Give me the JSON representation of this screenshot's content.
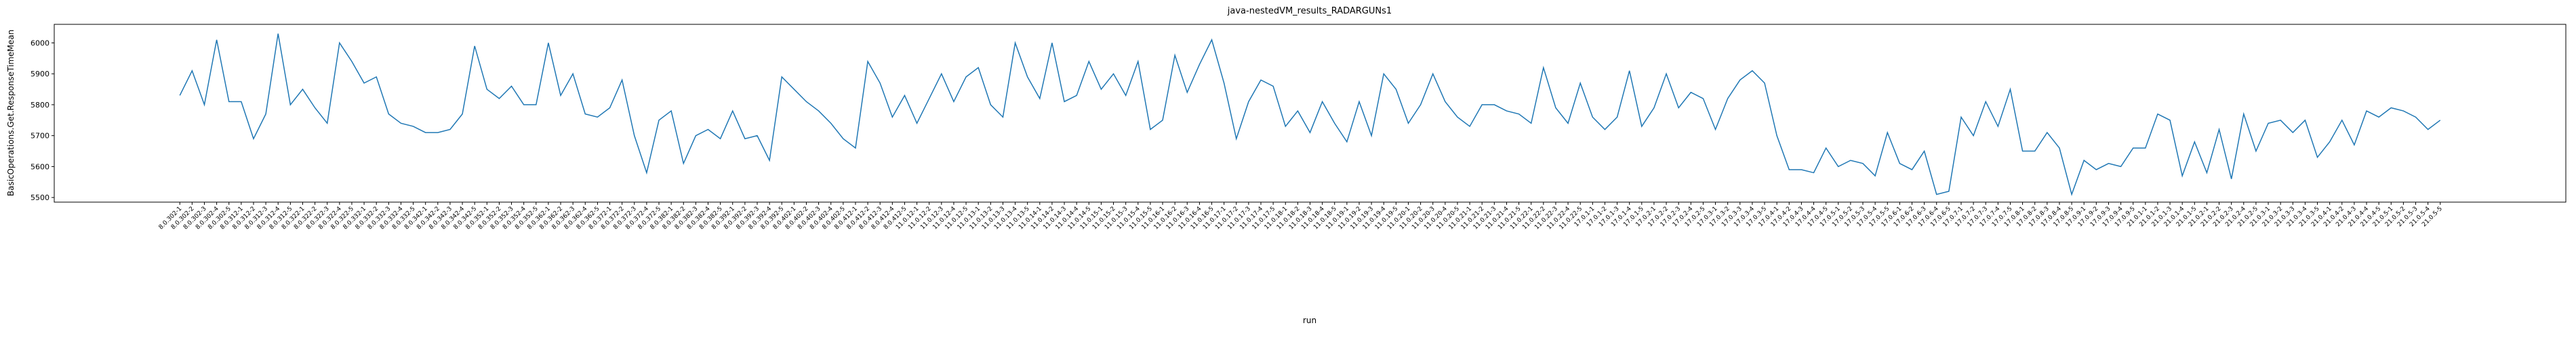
{
  "chart_data": {
    "type": "line",
    "title": "java-nestedVM_results_RADARGUNs1",
    "x_label": "run",
    "y_label": "BasicOperations.Get.ResponseTimeMean",
    "categories": [
      "8.0.302-1",
      "8.0.302-2",
      "8.0.302-3",
      "8.0.302-4",
      "8.0.302-5",
      "8.0.312-1",
      "8.0.312-2",
      "8.0.312-3",
      "8.0.312-4",
      "8.0.312-5",
      "8.0.322-1",
      "8.0.322-2",
      "8.0.322-3",
      "8.0.322-4",
      "8.0.322-5",
      "8.0.332-1",
      "8.0.332-2",
      "8.0.332-3",
      "8.0.332-4",
      "8.0.332-5",
      "8.0.342-1",
      "8.0.342-2",
      "8.0.342-3",
      "8.0.342-4",
      "8.0.342-5",
      "8.0.352-1",
      "8.0.352-2",
      "8.0.352-3",
      "8.0.352-4",
      "8.0.352-5",
      "8.0.362-1",
      "8.0.362-2",
      "8.0.362-3",
      "8.0.362-4",
      "8.0.362-5",
      "8.0.372-1",
      "8.0.372-2",
      "8.0.372-3",
      "8.0.372-4",
      "8.0.372-5",
      "8.0.382-1",
      "8.0.382-2",
      "8.0.382-3",
      "8.0.382-4",
      "8.0.382-5",
      "8.0.392-1",
      "8.0.392-2",
      "8.0.392-3",
      "8.0.392-4",
      "8.0.392-5",
      "8.0.402-1",
      "8.0.402-2",
      "8.0.402-3",
      "8.0.402-4",
      "8.0.402-5",
      "8.0.412-1",
      "8.0.412-2",
      "8.0.412-3",
      "8.0.412-4",
      "8.0.412-5",
      "11.0.12-1",
      "11.0.12-2",
      "11.0.12-3",
      "11.0.12-4",
      "11.0.12-5",
      "11.0.13-1",
      "11.0.13-2",
      "11.0.13-3",
      "11.0.13-4",
      "11.0.13-5",
      "11.0.14-1",
      "11.0.14-2",
      "11.0.14-3",
      "11.0.14-4",
      "11.0.14-5",
      "11.0.15-1",
      "11.0.15-2",
      "11.0.15-3",
      "11.0.15-4",
      "11.0.15-5",
      "11.0.16-1",
      "11.0.16-2",
      "11.0.16-3",
      "11.0.16-4",
      "11.0.16-5",
      "11.0.17-1",
      "11.0.17-2",
      "11.0.17-3",
      "11.0.17-4",
      "11.0.17-5",
      "11.0.18-1",
      "11.0.18-2",
      "11.0.18-3",
      "11.0.18-4",
      "11.0.18-5",
      "11.0.19-1",
      "11.0.19-2",
      "11.0.19-3",
      "11.0.19-4",
      "11.0.19-5",
      "11.0.20-1",
      "11.0.20-2",
      "11.0.20-3",
      "11.0.20-4",
      "11.0.20-5",
      "11.0.21-1",
      "11.0.21-2",
      "11.0.21-3",
      "11.0.21-4",
      "11.0.21-5",
      "11.0.22-1",
      "11.0.22-2",
      "11.0.22-3",
      "11.0.22-4",
      "11.0.22-5",
      "17.0.1-1",
      "17.0.1-2",
      "17.0.1-3",
      "17.0.1-4",
      "17.0.1-5",
      "17.0.2-1",
      "17.0.2-2",
      "17.0.2-3",
      "17.0.2-4",
      "17.0.2-5",
      "17.0.3-1",
      "17.0.3-2",
      "17.0.3-3",
      "17.0.3-4",
      "17.0.3-5",
      "17.0.4-1",
      "17.0.4-2",
      "17.0.4-3",
      "17.0.4-4",
      "17.0.4-5",
      "17.0.5-1",
      "17.0.5-2",
      "17.0.5-3",
      "17.0.5-4",
      "17.0.5-5",
      "17.0.6-1",
      "17.0.6-2",
      "17.0.6-3",
      "17.0.6-4",
      "17.0.6-5",
      "17.0.7-1",
      "17.0.7-2",
      "17.0.7-3",
      "17.0.7-4",
      "17.0.7-5",
      "17.0.8-1",
      "17.0.8-2",
      "17.0.8-3",
      "17.0.8-4",
      "17.0.8-5",
      "17.0.9-1",
      "17.0.9-2",
      "17.0.9-3",
      "17.0.9-4",
      "17.0.9-5",
      "21.0.1-1",
      "21.0.1-2",
      "21.0.1-3",
      "21.0.1-4",
      "21.0.1-5",
      "21.0.2-1",
      "21.0.2-2",
      "21.0.2-3",
      "21.0.2-4",
      "21.0.2-5",
      "21.0.3-1",
      "21.0.3-2",
      "21.0.3-3",
      "21.0.3-4",
      "21.0.3-5",
      "21.0.4-1",
      "21.0.4-2",
      "21.0.4-3",
      "21.0.4-4",
      "21.0.4-5",
      "21.0.5-1",
      "21.0.5-2",
      "21.0.5-3",
      "21.0.5-4",
      "21.0.5-5"
    ],
    "series": [
      {
        "name": "BasicOperations.Get.ResponseTimeMean",
        "color": "#1f77b4",
        "values": [
          5830,
          5910,
          5800,
          6010,
          5810,
          5810,
          5690,
          5770,
          6030,
          5800,
          5850,
          5790,
          5740,
          6000,
          5940,
          5870,
          5890,
          5770,
          5740,
          5730,
          5710,
          5710,
          5720,
          5770,
          5990,
          5850,
          5820,
          5860,
          5800,
          5800,
          6000,
          5830,
          5900,
          5770,
          5760,
          5790,
          5880,
          5700,
          5580,
          5750,
          5780,
          5610,
          5700,
          5720,
          5690,
          5780,
          5690,
          5700,
          5620,
          5890,
          5850,
          5810,
          5780,
          5740,
          5690,
          5660,
          5940,
          5870,
          5760,
          5830,
          5740,
          5820,
          5900,
          5810,
          5890,
          5920,
          5800,
          5760,
          6000,
          5890,
          5820,
          6000,
          5810,
          5830,
          5940,
          5850,
          5900,
          5830,
          5940,
          5720,
          5750,
          5960,
          5840,
          5930,
          6010,
          5870,
          5690,
          5810,
          5880,
          5860,
          5730,
          5780,
          5710,
          5810,
          5740,
          5680,
          5810,
          5700,
          5900,
          5850,
          5740,
          5800,
          5900,
          5810,
          5760,
          5730,
          5800,
          5800,
          5780,
          5770,
          5740,
          5920,
          5790,
          5740,
          5870,
          5760,
          5720,
          5760,
          5910,
          5730,
          5790,
          5900,
          5790,
          5840,
          5820,
          5720,
          5820,
          5880,
          5910,
          5870,
          5700,
          5590,
          5590,
          5580,
          5660,
          5600,
          5620,
          5610,
          5570,
          5710,
          5610,
          5590,
          5650,
          5510,
          5520,
          5760,
          5700,
          5810,
          5730,
          5850,
          5650,
          5650,
          5710,
          5660,
          5510,
          5620,
          5590,
          5610,
          5600,
          5660,
          5660,
          5770,
          5750,
          5570,
          5680,
          5580,
          5720,
          5560,
          5770,
          5650,
          5740,
          5750,
          5710,
          5750,
          5630,
          5680,
          5750,
          5670,
          5780,
          5760,
          5790,
          5780,
          5760,
          5720,
          5750
        ]
      }
    ],
    "ylim": [
      5485,
      6060
    ],
    "yticks": [
      5500,
      5600,
      5700,
      5800,
      5900,
      6000
    ]
  }
}
